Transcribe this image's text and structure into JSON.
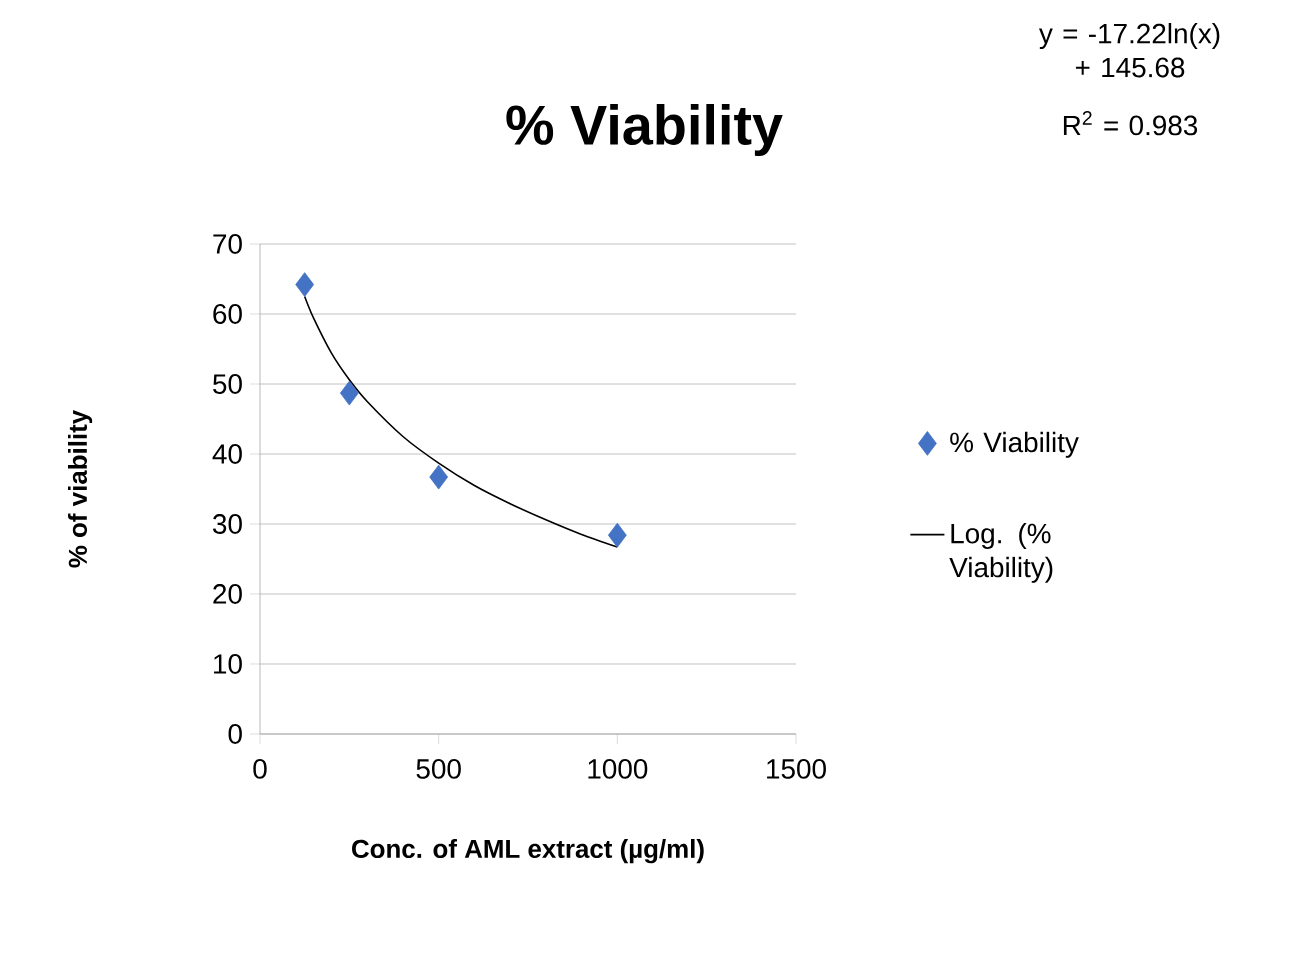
{
  "chart_data": {
    "type": "scatter",
    "title": "% Viability",
    "xlabel": "Conc. of AML extract (µg/ml)",
    "ylabel": "% of viability",
    "annotations": [
      "y = -17.22ln(x) + 145.68",
      "R$^{2}$ = 0.983"
    ],
    "x": [
      125,
      250,
      500,
      1000
    ],
    "series": [
      {
        "name": "% Viability",
        "color": "#4472c4",
        "values": [
          64.2,
          48.7,
          36.7,
          28.4
        ],
        "marker": "diamond"
      },
      {
        "name": "Log. (% Viability)",
        "type": "line",
        "color": "#000000",
        "marker": "none",
        "x": [
          125,
          150,
          200,
          250,
          300,
          400,
          500,
          600,
          700,
          800,
          900,
          1000
        ],
        "values": [
          62.5,
          59.4,
          54.4,
          50.6,
          47.5,
          42.5,
          38.7,
          35.5,
          32.9,
          30.6,
          28.5,
          26.7
        ]
      }
    ],
    "xlim": [
      0,
      1500
    ],
    "xticks": [
      0,
      500,
      1000,
      1500
    ],
    "ylim": [
      0,
      70
    ],
    "yticks": [
      0,
      10,
      20,
      30,
      40,
      50,
      60,
      70
    ],
    "grid": "y",
    "legend": "right"
  }
}
